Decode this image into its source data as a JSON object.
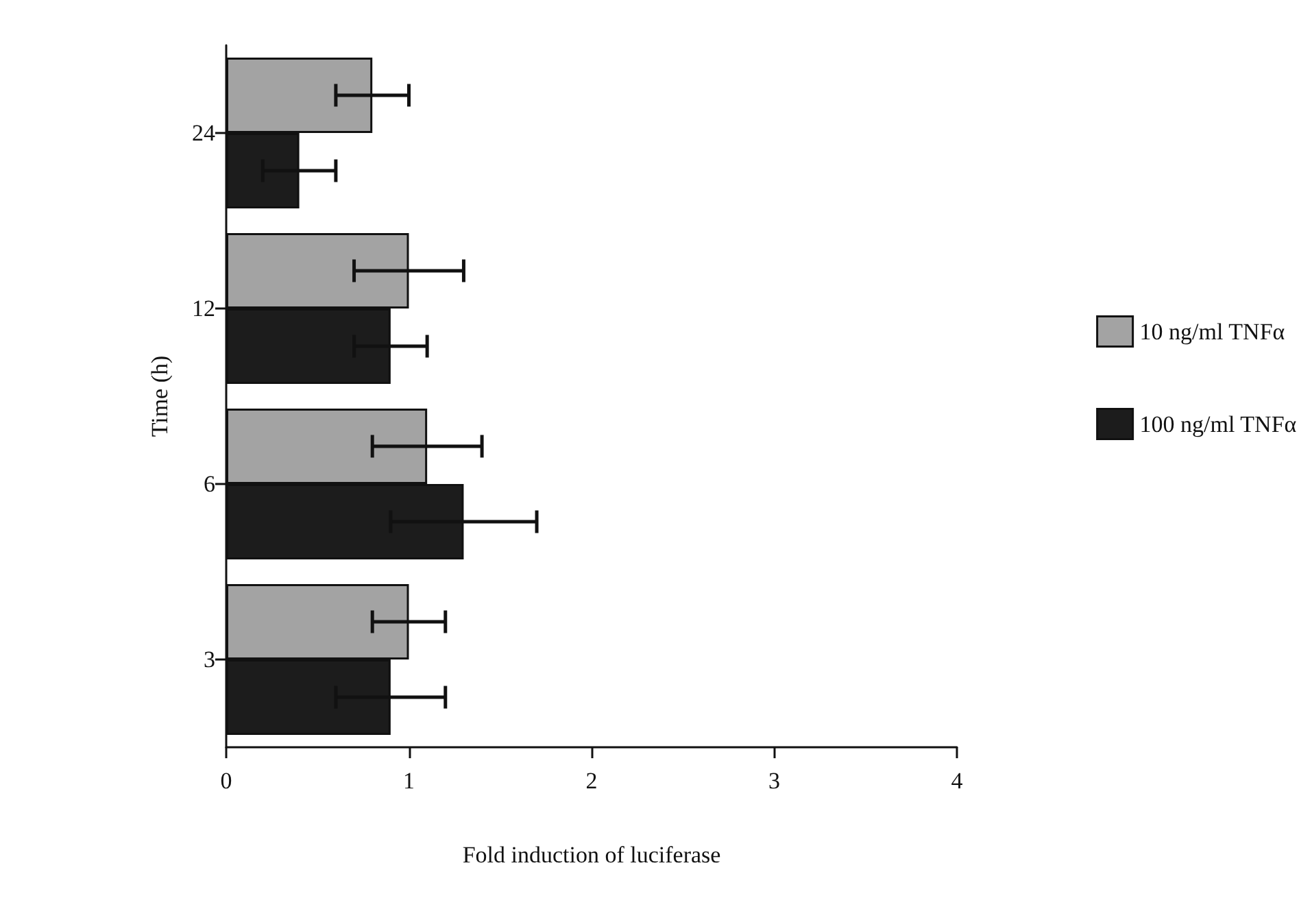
{
  "chart_data": {
    "type": "bar",
    "orientation": "horizontal",
    "xlabel": "Fold induction of luciferase",
    "ylabel": "Time (h)",
    "categories": [
      "24",
      "12",
      "6",
      "3"
    ],
    "series": [
      {
        "name": "10 ng/ml TNFα",
        "color": "#a3a3a3",
        "values": [
          0.8,
          1.0,
          1.1,
          1.0
        ],
        "errors": [
          0.2,
          0.3,
          0.3,
          0.2
        ]
      },
      {
        "name": "100 ng/ml TNFα",
        "color": "#1c1c1c",
        "values": [
          0.4,
          0.9,
          1.3,
          0.9
        ],
        "errors": [
          0.2,
          0.2,
          0.4,
          0.3
        ]
      }
    ],
    "xlim": [
      0,
      4
    ],
    "xticks": [
      0,
      1,
      2,
      3,
      4
    ],
    "grid": false,
    "legend": "right"
  }
}
